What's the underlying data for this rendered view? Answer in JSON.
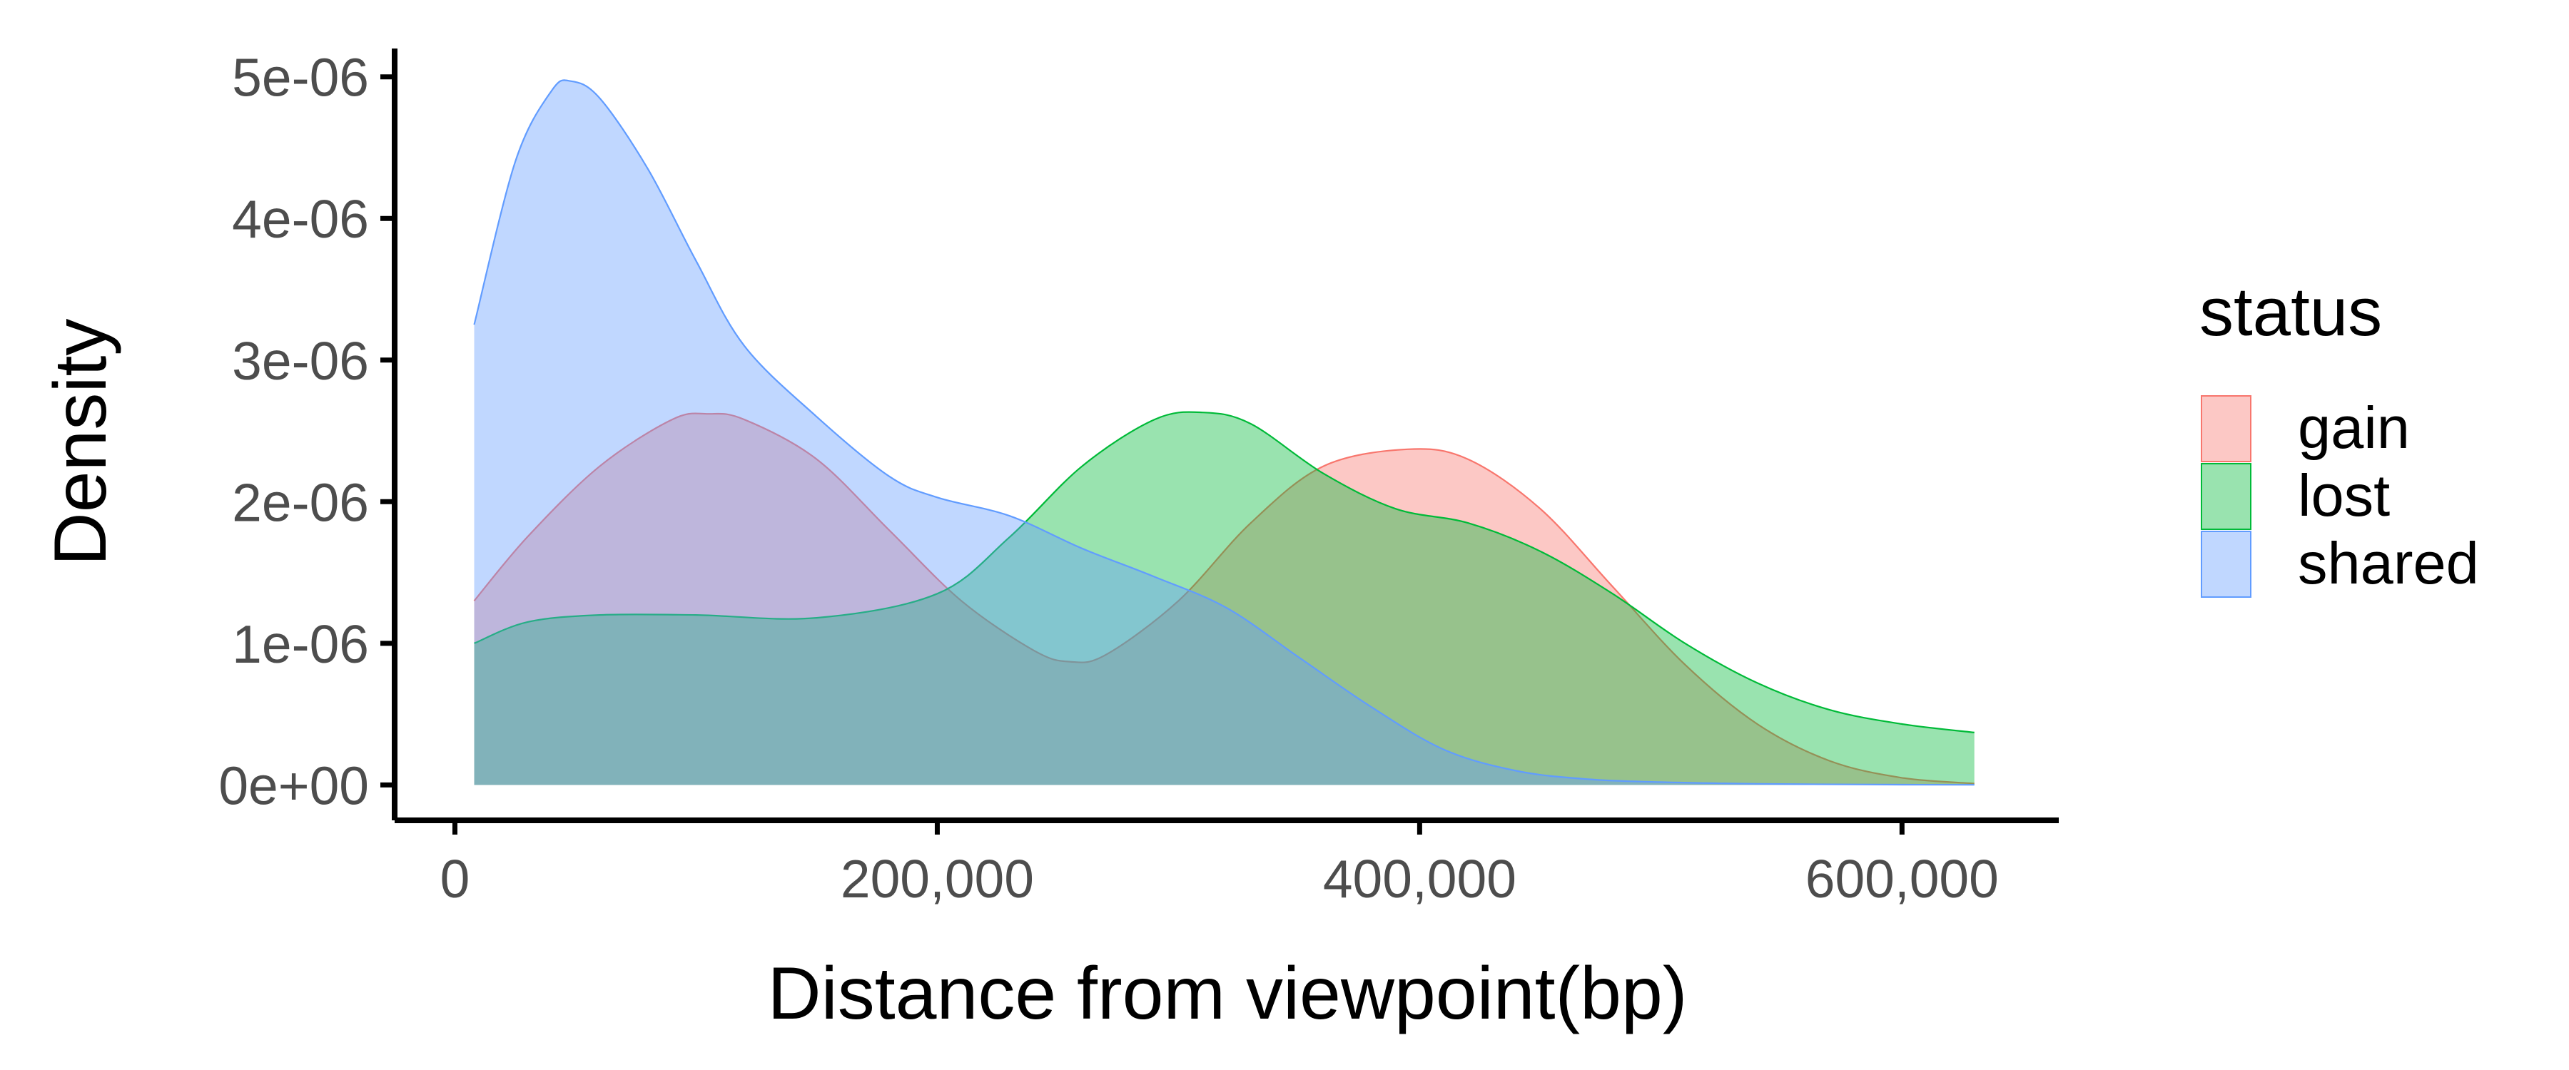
{
  "chart_data": {
    "type": "area",
    "title": "",
    "xlabel": "Distance from viewpoint(bp)",
    "ylabel": "Density",
    "xlim": [
      -25000,
      665000
    ],
    "ylim": [
      -2.5e-07,
      5.2e-06
    ],
    "x_ticks": [
      {
        "value": 0,
        "label": "0"
      },
      {
        "value": 200000,
        "label": "200,000"
      },
      {
        "value": 400000,
        "label": "400,000"
      },
      {
        "value": 600000,
        "label": "600,000"
      }
    ],
    "y_ticks": [
      {
        "value": 0,
        "label": "0e+00"
      },
      {
        "value": 1e-06,
        "label": "1e-06"
      },
      {
        "value": 2e-06,
        "label": "2e-06"
      },
      {
        "value": 3e-06,
        "label": "3e-06"
      },
      {
        "value": 4e-06,
        "label": "4e-06"
      },
      {
        "value": 5e-06,
        "label": "5e-06"
      }
    ],
    "grid": false,
    "legend": {
      "title": "status",
      "position": "right"
    },
    "series": [
      {
        "name": "gain",
        "fill": "#F8766D",
        "x": [
          8000,
          30000,
          60000,
          90000,
          105000,
          120000,
          150000,
          180000,
          210000,
          240000,
          255000,
          270000,
          300000,
          330000,
          360000,
          395000,
          420000,
          450000,
          480000,
          510000,
          540000,
          570000,
          600000,
          630000
        ],
        "y": [
          1.3e-06,
          1.75e-06,
          2.25e-06,
          2.58e-06,
          2.62e-06,
          2.58e-06,
          2.3e-06,
          1.8e-06,
          1.3e-06,
          9.5e-07,
          8.7e-07,
          9.2e-07,
          1.3e-06,
          1.85e-06,
          2.25e-06,
          2.37e-06,
          2.3e-06,
          1.95e-06,
          1.4e-06,
          8.5e-07,
          4.3e-07,
          1.7e-07,
          5e-08,
          1e-08
        ]
      },
      {
        "name": "lost",
        "fill": "#00BA38",
        "x": [
          8000,
          30000,
          60000,
          100000,
          150000,
          200000,
          230000,
          260000,
          290000,
          310000,
          330000,
          360000,
          390000,
          420000,
          450000,
          480000,
          510000,
          540000,
          570000,
          600000,
          630000
        ],
        "y": [
          1e-06,
          1.15e-06,
          1.2e-06,
          1.2e-06,
          1.18e-06,
          1.35e-06,
          1.75e-06,
          2.25e-06,
          2.58e-06,
          2.63e-06,
          2.55e-06,
          2.2e-06,
          1.95e-06,
          1.85e-06,
          1.65e-06,
          1.35e-06,
          1e-06,
          7.2e-07,
          5.3e-07,
          4.3e-07,
          3.7e-07
        ]
      },
      {
        "name": "shared",
        "fill": "#619CFF",
        "x": [
          8000,
          25000,
          40000,
          48000,
          60000,
          80000,
          100000,
          120000,
          150000,
          180000,
          200000,
          230000,
          260000,
          290000,
          320000,
          350000,
          380000,
          410000,
          440000,
          470000,
          500000,
          530000,
          560000,
          600000,
          630000
        ],
        "y": [
          3.25e-06,
          4.4e-06,
          4.9e-06,
          4.97e-06,
          4.85e-06,
          4.35e-06,
          3.7e-06,
          3.1e-06,
          2.6e-06,
          2.18e-06,
          2.03e-06,
          1.9e-06,
          1.67e-06,
          1.47e-06,
          1.25e-06,
          9e-07,
          5.5e-07,
          2.5e-07,
          1e-07,
          4e-08,
          2e-08,
          1e-08,
          5e-09,
          2e-09,
          1e-09
        ]
      }
    ]
  }
}
